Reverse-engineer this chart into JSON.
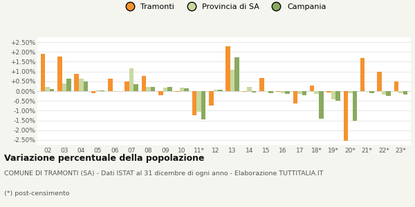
{
  "categories": [
    "02",
    "03",
    "04",
    "05",
    "06",
    "07",
    "08",
    "09",
    "10",
    "11*",
    "12",
    "13",
    "14",
    "15",
    "16",
    "17",
    "18*",
    "19*",
    "20*",
    "21*",
    "22*",
    "23*"
  ],
  "tramonti": [
    1.9,
    1.75,
    0.88,
    -0.1,
    0.65,
    0.48,
    0.78,
    -0.2,
    -0.05,
    -1.22,
    -0.75,
    2.28,
    -0.05,
    0.68,
    -0.02,
    -0.62,
    0.28,
    -0.08,
    -2.55,
    1.68,
    0.97,
    0.5
  ],
  "provincia_sa": [
    0.2,
    0.4,
    0.62,
    0.05,
    -0.05,
    1.15,
    0.22,
    0.18,
    0.18,
    -1.05,
    0.08,
    1.08,
    0.22,
    -0.05,
    -0.1,
    -0.15,
    -0.15,
    -0.42,
    -0.12,
    -0.05,
    -0.18,
    -0.1
  ],
  "campania": [
    0.1,
    0.62,
    0.5,
    0.02,
    0.0,
    0.35,
    0.2,
    0.2,
    0.15,
    -1.45,
    0.08,
    1.72,
    -0.08,
    -0.12,
    -0.15,
    -0.2,
    -1.42,
    -0.5,
    -1.52,
    -0.1,
    -0.25,
    -0.18
  ],
  "color_tramonti": "#f5922f",
  "color_provincia": "#c8d9a0",
  "color_campania": "#8aaa60",
  "title": "Variazione percentuale della popolazione",
  "subtitle": "COMUNE DI TRAMONTI (SA) - Dati ISTAT al 31 dicembre di ogni anno - Elaborazione TUTTITALIA.IT",
  "footnote": "(*) post-censimento",
  "ylim": [
    -2.75,
    2.75
  ],
  "yticks": [
    -2.5,
    -2.0,
    -1.5,
    -1.0,
    -0.5,
    0.0,
    0.5,
    1.0,
    1.5,
    2.0,
    2.5
  ],
  "bg_color": "#f5f5f0",
  "plot_bg_color": "#ffffff"
}
